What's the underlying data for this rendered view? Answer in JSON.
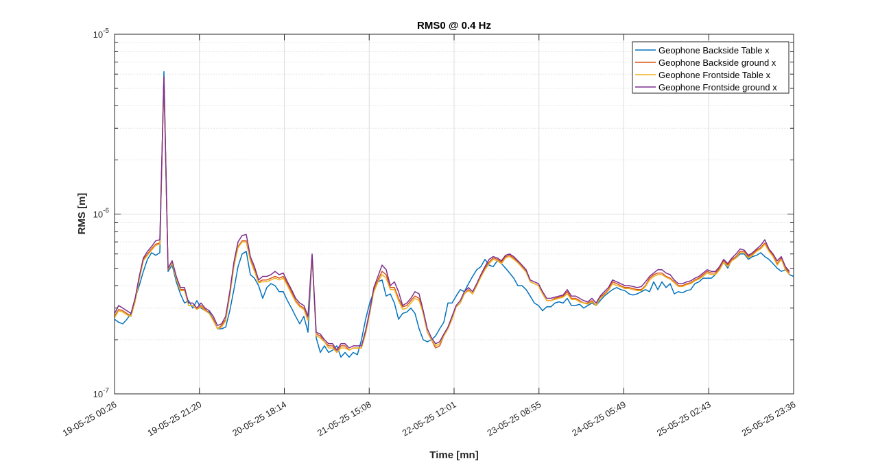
{
  "chart_data": {
    "type": "line",
    "title": "RMS0 @ 0.4 Hz",
    "xlabel": "Time [mn]",
    "ylabel": "RMS [m]",
    "yscale": "log",
    "ylim": [
      1e-07,
      1e-05
    ],
    "y_ticks": [
      {
        "value": 1e-07,
        "base": "10",
        "exp": "-7"
      },
      {
        "value": 1e-06,
        "base": "10",
        "exp": "-6"
      },
      {
        "value": 1e-05,
        "base": "10",
        "exp": "-5"
      }
    ],
    "x_tick_labels": [
      "19-05-25 00:26",
      "19-05-25 21:20",
      "20-05-25 18:14",
      "21-05-25 15:08",
      "22-05-25 12:01",
      "23-05-25 08:55",
      "24-05-25 05:49",
      "25-05-25 02:43",
      "25-05-25 23:36"
    ],
    "grid": true,
    "minor_grid": true,
    "legend_position": "top-right",
    "x_start": "19-05-25 00:26",
    "sample_interval": "1 hour",
    "series": [
      {
        "name": "Geophone Backside Table x",
        "color": "#0072BD",
        "values": [
          2.6e-07,
          2.5e-07,
          2.45e-07,
          2.6e-07,
          2.8e-07,
          3.4e-07,
          4e-07,
          4.8e-07,
          5.6e-07,
          6.1e-07,
          5.9e-07,
          6.1e-07,
          6.2e-06,
          4.8e-07,
          5.2e-07,
          4.2e-07,
          3.6e-07,
          3.2e-07,
          3.3e-07,
          3e-07,
          3.3e-07,
          3e-07,
          2.9e-07,
          2.85e-07,
          2.6e-07,
          2.3e-07,
          2.3e-07,
          2.35e-07,
          2.9e-07,
          3.8e-07,
          5.1e-07,
          6e-07,
          6.2e-07,
          4.6e-07,
          4.4e-07,
          4e-07,
          3.4e-07,
          3.9e-07,
          4.1e-07,
          4e-07,
          3.7e-07,
          3.7e-07,
          3.3e-07,
          3e-07,
          2.7e-07,
          2.45e-07,
          2.7e-07,
          2.2e-07,
          5.9e-07,
          2.05e-07,
          1.7e-07,
          1.85e-07,
          1.7e-07,
          1.75e-07,
          1.85e-07,
          1.6e-07,
          1.7e-07,
          1.6e-07,
          1.7e-07,
          1.65e-07,
          2e-07,
          2.6e-07,
          3.2e-07,
          3.7e-07,
          4.2e-07,
          4.3e-07,
          3.5e-07,
          3.6e-07,
          3.2e-07,
          2.6e-07,
          2.8e-07,
          2.85e-07,
          3e-07,
          2.8e-07,
          2.3e-07,
          2e-07,
          1.95e-07,
          2e-07,
          2.1e-07,
          2.3e-07,
          2.5e-07,
          3.2e-07,
          3.2e-07,
          3.5e-07,
          3.8e-07,
          3.7e-07,
          4.1e-07,
          4.5e-07,
          4.9e-07,
          5.1e-07,
          5.6e-07,
          5.2e-07,
          5.1e-07,
          5.5e-07,
          5.3e-07,
          5e-07,
          4.7e-07,
          4.4e-07,
          4e-07,
          4e-07,
          3.8e-07,
          3.5e-07,
          3.2e-07,
          3.1e-07,
          2.9e-07,
          3.05e-07,
          3.05e-07,
          3.2e-07,
          3.25e-07,
          3.2e-07,
          3.4e-07,
          3.1e-07,
          3.1e-07,
          3.15e-07,
          3e-07,
          3.1e-07,
          3.2e-07,
          3.1e-07,
          3.3e-07,
          3.5e-07,
          3.65e-07,
          3.8e-07,
          3.9e-07,
          3.8e-07,
          3.75e-07,
          3.6e-07,
          3.55e-07,
          3.6e-07,
          3.7e-07,
          3.8e-07,
          3.7e-07,
          4.2e-07,
          3.8e-07,
          4.2e-07,
          3.9e-07,
          4.1e-07,
          3.6e-07,
          3.7e-07,
          3.65e-07,
          3.75e-07,
          3.8e-07,
          4.1e-07,
          4.2e-07,
          4.4e-07,
          4.4e-07,
          4.4e-07,
          4.6e-07,
          4.9e-07,
          5.4e-07,
          5e-07,
          5.6e-07,
          5.7e-07,
          6e-07,
          6e-07,
          5.6e-07,
          5.8e-07,
          5.9e-07,
          6.1e-07,
          5.8e-07,
          5.6e-07,
          5.3e-07,
          5e-07,
          4.8e-07,
          4.9e-07,
          4.6e-07,
          4.5e-07
        ]
      },
      {
        "name": "Geophone Backside ground x",
        "color": "#D95319",
        "values": [
          2.7e-07,
          2.95e-07,
          2.9e-07,
          2.8e-07,
          2.7e-07,
          3.3e-07,
          4.4e-07,
          5.6e-07,
          6e-07,
          6.4e-07,
          6.8e-07,
          6.9e-07,
          5.7e-06,
          4.9e-07,
          5.4e-07,
          4.4e-07,
          3.8e-07,
          3.8e-07,
          3.1e-07,
          3.1e-07,
          2.95e-07,
          3.1e-07,
          2.95e-07,
          2.8e-07,
          2.6e-07,
          2.3e-07,
          2.4e-07,
          2.6e-07,
          3.6e-07,
          5.2e-07,
          6.6e-07,
          7.1e-07,
          7.1e-07,
          5.6e-07,
          4.9e-07,
          4.2e-07,
          4.3e-07,
          4.3e-07,
          4.4e-07,
          4.5e-07,
          4.4e-07,
          4.5e-07,
          4.1e-07,
          3.7e-07,
          3.3e-07,
          3.1e-07,
          3e-07,
          2.6e-07,
          5.9e-07,
          2.15e-07,
          2.1e-07,
          1.95e-07,
          1.85e-07,
          1.85e-07,
          1.7e-07,
          1.85e-07,
          1.85e-07,
          1.75e-07,
          1.8e-07,
          1.8e-07,
          1.8e-07,
          2.2e-07,
          2.8e-07,
          3.8e-07,
          4.3e-07,
          4.8e-07,
          4.6e-07,
          3.9e-07,
          3.9e-07,
          3.4e-07,
          3.05e-07,
          3.1e-07,
          3.3e-07,
          3.5e-07,
          3.4e-07,
          2.8e-07,
          2.2e-07,
          2e-07,
          1.8e-07,
          1.85e-07,
          2.1e-07,
          2.3e-07,
          2.6e-07,
          3.05e-07,
          3.2e-07,
          3.6e-07,
          3.8e-07,
          3.6e-07,
          4e-07,
          4.5e-07,
          5e-07,
          5.4e-07,
          5.7e-07,
          5.6e-07,
          5.4e-07,
          5.8e-07,
          5.9e-07,
          5.7e-07,
          5.4e-07,
          5.1e-07,
          4.8e-07,
          4.2e-07,
          4.1e-07,
          4e-07,
          3.6e-07,
          3.3e-07,
          3.3e-07,
          3.4e-07,
          3.45e-07,
          3.5e-07,
          3.7e-07,
          3.4e-07,
          3.4e-07,
          3.3e-07,
          3.2e-07,
          3.2e-07,
          3.3e-07,
          3.1e-07,
          3.45e-07,
          3.6e-07,
          3.8e-07,
          4.2e-07,
          4.1e-07,
          4e-07,
          3.9e-07,
          3.9e-07,
          3.85e-07,
          3.8e-07,
          3.8e-07,
          4e-07,
          4.4e-07,
          4.6e-07,
          4.7e-07,
          4.7e-07,
          4.5e-07,
          4.4e-07,
          4.2e-07,
          4e-07,
          4e-07,
          4.1e-07,
          4.15e-07,
          4.3e-07,
          4.4e-07,
          4.6e-07,
          4.8e-07,
          4.7e-07,
          4.7e-07,
          5e-07,
          5.5e-07,
          5.2e-07,
          5.6e-07,
          5.8e-07,
          6.2e-07,
          6.2e-07,
          5.8e-07,
          6e-07,
          6.3e-07,
          6.5e-07,
          6.9e-07,
          6.3e-07,
          5.9e-07,
          5.3e-07,
          5.7e-07,
          5e-07,
          4.7e-07
        ]
      },
      {
        "name": "Geophone Frontside Table x",
        "color": "#EDB120",
        "values": [
          2.65e-07,
          2.9e-07,
          2.85e-07,
          2.75e-07,
          2.7e-07,
          3.25e-07,
          4.3e-07,
          5.5e-07,
          5.9e-07,
          6.3e-07,
          6.7e-07,
          6.8e-07,
          5.6e-06,
          4.95e-07,
          5.35e-07,
          4.35e-07,
          3.75e-07,
          3.75e-07,
          3.1e-07,
          3.1e-07,
          2.95e-07,
          3.05e-07,
          2.9e-07,
          2.8e-07,
          2.55e-07,
          2.3e-07,
          2.35e-07,
          2.55e-07,
          3.5e-07,
          5.1e-07,
          6.5e-07,
          7e-07,
          7e-07,
          5.5e-07,
          4.8e-07,
          4.15e-07,
          4.2e-07,
          4.2e-07,
          4.3e-07,
          4.4e-07,
          4.3e-07,
          4.4e-07,
          4e-07,
          3.6e-07,
          3.25e-07,
          3.05e-07,
          2.95e-07,
          2.55e-07,
          5.85e-07,
          2.1e-07,
          2.05e-07,
          1.95e-07,
          1.8e-07,
          1.8e-07,
          1.7e-07,
          1.8e-07,
          1.8e-07,
          1.75e-07,
          1.8e-07,
          1.8e-07,
          1.8e-07,
          2.15e-07,
          2.8e-07,
          3.7e-07,
          4.2e-07,
          4.6e-07,
          4.4e-07,
          3.8e-07,
          3.8e-07,
          3.3e-07,
          2.95e-07,
          3e-07,
          3.2e-07,
          3.4e-07,
          3.3e-07,
          2.8e-07,
          2.2e-07,
          2e-07,
          1.85e-07,
          1.9e-07,
          2.1e-07,
          2.3e-07,
          2.6e-07,
          3.05e-07,
          3.2e-07,
          3.6e-07,
          3.75e-07,
          3.6e-07,
          4e-07,
          4.45e-07,
          4.9e-07,
          5.3e-07,
          5.6e-07,
          5.5e-07,
          5.3e-07,
          5.7e-07,
          5.8e-07,
          5.6e-07,
          5.35e-07,
          5.05e-07,
          4.75e-07,
          4.2e-07,
          4.1e-07,
          4e-07,
          3.6e-07,
          3.3e-07,
          3.3e-07,
          3.35e-07,
          3.4e-07,
          3.45e-07,
          3.6e-07,
          3.35e-07,
          3.35e-07,
          3.25e-07,
          3.2e-07,
          3.15e-07,
          3.25e-07,
          3.1e-07,
          3.4e-07,
          3.55e-07,
          3.75e-07,
          4.1e-07,
          4e-07,
          3.95e-07,
          3.85e-07,
          3.85e-07,
          3.8e-07,
          3.75e-07,
          3.75e-07,
          3.95e-07,
          4.3e-07,
          4.5e-07,
          4.6e-07,
          4.6e-07,
          4.45e-07,
          4.35e-07,
          4.15e-07,
          3.95e-07,
          3.95e-07,
          4.05e-07,
          4.1e-07,
          4.25e-07,
          4.35e-07,
          4.5e-07,
          4.7e-07,
          4.6e-07,
          4.6e-07,
          4.9e-07,
          5.4e-07,
          5.1e-07,
          5.5e-07,
          5.7e-07,
          6.1e-07,
          6.1e-07,
          5.7e-07,
          5.9e-07,
          6.2e-07,
          6.4e-07,
          6.8e-07,
          6.2e-07,
          5.8e-07,
          5.2e-07,
          5.6e-07,
          4.9e-07,
          4.6e-07
        ]
      },
      {
        "name": "Geophone Frontside ground x",
        "color": "#7E2F8E",
        "values": [
          2.8e-07,
          3.1e-07,
          3e-07,
          2.9e-07,
          2.8e-07,
          3.4e-07,
          4.5e-07,
          5.7e-07,
          6.2e-07,
          6.6e-07,
          7.1e-07,
          7.2e-07,
          5.8e-06,
          5e-07,
          5.5e-07,
          4.5e-07,
          3.9e-07,
          3.9e-07,
          3.2e-07,
          3.2e-07,
          3e-07,
          3.2e-07,
          3e-07,
          2.9e-07,
          2.7e-07,
          2.4e-07,
          2.45e-07,
          2.7e-07,
          3.7e-07,
          5.4e-07,
          7e-07,
          7.6e-07,
          7.7e-07,
          5.8e-07,
          5.1e-07,
          4.3e-07,
          4.5e-07,
          4.5e-07,
          4.6e-07,
          4.8e-07,
          4.6e-07,
          4.7e-07,
          4.2e-07,
          3.8e-07,
          3.4e-07,
          3.2e-07,
          3.1e-07,
          2.7e-07,
          6e-07,
          2.2e-07,
          2.15e-07,
          2e-07,
          1.9e-07,
          1.9e-07,
          1.75e-07,
          1.9e-07,
          1.9e-07,
          1.8e-07,
          1.85e-07,
          1.85e-07,
          1.85e-07,
          2.25e-07,
          2.9e-07,
          3.9e-07,
          4.5e-07,
          5.2e-07,
          4.9e-07,
          4e-07,
          4.2e-07,
          3.7e-07,
          3.1e-07,
          3.2e-07,
          3.4e-07,
          3.7e-07,
          3.6e-07,
          2.9e-07,
          2.3e-07,
          2.05e-07,
          1.9e-07,
          1.95e-07,
          2.15e-07,
          2.35e-07,
          2.7e-07,
          3.1e-07,
          3.3e-07,
          3.7e-07,
          3.9e-07,
          3.7e-07,
          4.1e-07,
          4.6e-07,
          5.1e-07,
          5.6e-07,
          5.8e-07,
          5.7e-07,
          5.5e-07,
          5.9e-07,
          6e-07,
          5.8e-07,
          5.5e-07,
          5.2e-07,
          4.9e-07,
          4.3e-07,
          4.2e-07,
          4.1e-07,
          3.7e-07,
          3.4e-07,
          3.4e-07,
          3.45e-07,
          3.5e-07,
          3.55e-07,
          3.8e-07,
          3.5e-07,
          3.5e-07,
          3.4e-07,
          3.3e-07,
          3.25e-07,
          3.4e-07,
          3.2e-07,
          3.5e-07,
          3.7e-07,
          3.9e-07,
          4.3e-07,
          4.2e-07,
          4.1e-07,
          4e-07,
          4e-07,
          3.95e-07,
          3.9e-07,
          3.95e-07,
          4.2e-07,
          4.5e-07,
          4.7e-07,
          4.9e-07,
          4.9e-07,
          4.7e-07,
          4.6e-07,
          4.3e-07,
          4.1e-07,
          4.1e-07,
          4.2e-07,
          4.25e-07,
          4.4e-07,
          4.5e-07,
          4.7e-07,
          4.9e-07,
          4.8e-07,
          4.8e-07,
          5.1e-07,
          5.6e-07,
          5.3e-07,
          5.7e-07,
          6e-07,
          6.4e-07,
          6.3e-07,
          5.9e-07,
          6.1e-07,
          6.4e-07,
          6.7e-07,
          7.2e-07,
          6.4e-07,
          6e-07,
          5.5e-07,
          5.8e-07,
          5.1e-07,
          4.8e-07
        ]
      }
    ]
  }
}
